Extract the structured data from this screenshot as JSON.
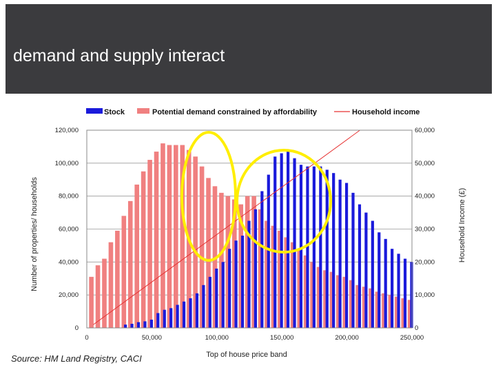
{
  "slide": {
    "title": "demand and supply interact",
    "source": "Source: HM Land Registry, CACI"
  },
  "chart_data": {
    "type": "bar",
    "legend": {
      "position": "top",
      "items": [
        {
          "label": "Stock",
          "color": "#1a1adb"
        },
        {
          "label": "Potential demand constrained by affordability",
          "color": "#f08080"
        },
        {
          "label": "Household income",
          "color": "#e63030"
        }
      ]
    },
    "xlabel": "Top of house price band",
    "ylabel": "Number of properties/ households",
    "y2label": "Household Income (£)",
    "xlim": [
      0,
      250000
    ],
    "ylim": [
      0,
      120000
    ],
    "y2lim": [
      0,
      60000
    ],
    "x_ticks": [
      "0",
      "50,000",
      "100,000",
      "150,000",
      "200,000",
      "250,000"
    ],
    "y_ticks": [
      "0",
      "20,000",
      "40,000",
      "60,000",
      "80,000",
      "100,000",
      "120,000"
    ],
    "y2_ticks": [
      "0",
      "10,000",
      "20,000",
      "30,000",
      "40,000",
      "50,000",
      "60,000"
    ],
    "grid": "horizontal",
    "categories": [
      5000,
      10000,
      15000,
      20000,
      25000,
      30000,
      35000,
      40000,
      45000,
      50000,
      55000,
      60000,
      65000,
      70000,
      75000,
      80000,
      85000,
      90000,
      95000,
      100000,
      105000,
      110000,
      115000,
      120000,
      125000,
      130000,
      135000,
      140000,
      145000,
      150000,
      155000,
      160000,
      165000,
      170000,
      175000,
      180000,
      185000,
      190000,
      195000,
      200000,
      205000,
      210000,
      215000,
      220000,
      225000,
      230000,
      235000,
      240000,
      245000,
      250000
    ],
    "series": [
      {
        "name": "Stock",
        "axis": "left",
        "values": [
          0,
          0,
          0,
          0,
          0,
          2000,
          2500,
          3500,
          4000,
          5000,
          9000,
          11000,
          12000,
          14000,
          16000,
          18000,
          21000,
          26000,
          31000,
          36000,
          40000,
          48000,
          53000,
          56000,
          65000,
          72000,
          83000,
          93000,
          104000,
          106000,
          108000,
          103000,
          99000,
          98000,
          98000,
          98000,
          96000,
          94000,
          90000,
          88000,
          82000,
          75000,
          70000,
          65000,
          58000,
          54000,
          48000,
          45000,
          42000,
          40000
        ]
      },
      {
        "name": "Potential demand constrained by affordability",
        "axis": "left",
        "values": [
          31000,
          38000,
          42000,
          52000,
          59000,
          68000,
          77000,
          87000,
          95000,
          102000,
          107000,
          112000,
          111000,
          111000,
          111000,
          108000,
          104000,
          98000,
          91000,
          86000,
          82000,
          80000,
          78000,
          75000,
          80000,
          80000,
          72000,
          65000,
          62000,
          59000,
          55000,
          52000,
          48000,
          44000,
          40000,
          37000,
          35000,
          34000,
          32000,
          31000,
          29000,
          26000,
          25000,
          24000,
          22000,
          21000,
          20000,
          19000,
          18000,
          17000
        ]
      },
      {
        "name": "Household income",
        "axis": "right",
        "type": "line",
        "x": [
          5000,
          210000
        ],
        "values": [
          1000,
          60000
        ]
      }
    ],
    "annotations": [
      {
        "shape": "ellipse",
        "color": "#ffee00",
        "around": "peak demand, x 75,000–125,000"
      },
      {
        "shape": "ellipse",
        "color": "#ffee00",
        "around": "peak stock, x 115,000–190,000"
      }
    ]
  }
}
